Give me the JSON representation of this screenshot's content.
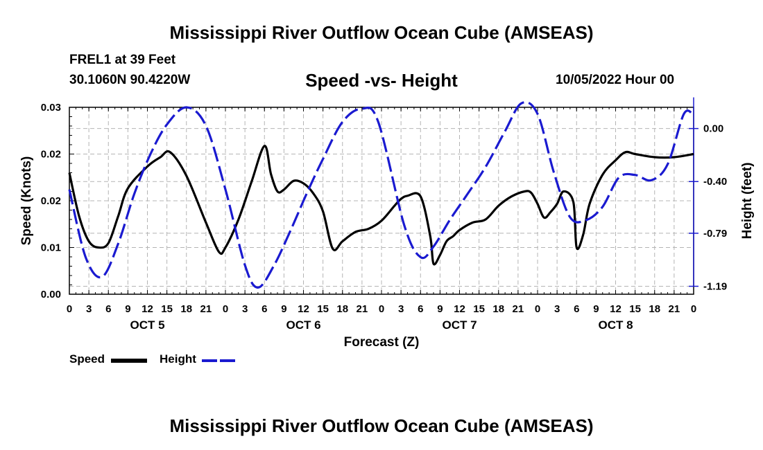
{
  "page": {
    "title": "Mississippi River Outflow Ocean Cube (AMSEAS)",
    "station": "FREL1 at 39 Feet",
    "coords": "30.1060N  90.4220W",
    "subtitle": "Speed -vs- Height",
    "date": "10/05/2022 Hour 00",
    "bottom_title": "Mississippi River Outflow Ocean Cube (AMSEAS)"
  },
  "legend": {
    "speed_label": "Speed",
    "height_label": "Height"
  },
  "colors": {
    "speed": "#000000",
    "height": "#1a1ad0",
    "grid": "#b4b4b4"
  },
  "chart_data": {
    "type": "line",
    "title": "Speed -vs- Height",
    "xlabel": "Forecast (Z)",
    "ylabel": "Speed (Knots)",
    "y2label": "Height (feet)",
    "x_range": [
      0,
      96
    ],
    "ylim": [
      0,
      0.03
    ],
    "y2lim": [
      -1.25,
      0.16
    ],
    "y_ticks": [
      "0.00",
      "0.01",
      "0.02",
      "0.02",
      "0.03"
    ],
    "y_tick_values": [
      0,
      0.0075,
      0.015,
      0.0225,
      0.03
    ],
    "y2_ticks": [
      "0.00",
      "-0.40",
      "-0.79",
      "-1.19"
    ],
    "y2_tick_values": [
      0,
      -0.4,
      -0.79,
      -1.19
    ],
    "x_ticks": [
      "0",
      "3",
      "6",
      "9",
      "12",
      "15",
      "18",
      "21",
      "0",
      "3",
      "6",
      "9",
      "12",
      "15",
      "18",
      "21",
      "0",
      "3",
      "6",
      "9",
      "12",
      "15",
      "18",
      "21",
      "0",
      "3",
      "6",
      "9",
      "12",
      "15",
      "18",
      "21",
      "0"
    ],
    "x_tick_step_hours": 3,
    "day_labels": [
      {
        "label": "OCT 5",
        "hour": 12
      },
      {
        "label": "OCT 6",
        "hour": 36
      },
      {
        "label": "OCT 7",
        "hour": 60
      },
      {
        "label": "OCT 8",
        "hour": 84
      }
    ],
    "series": [
      {
        "name": "Speed",
        "axis": "left",
        "style": "solid",
        "x": [
          0,
          1.5,
          3,
          4.5,
          6,
          7.5,
          9,
          12,
          14,
          15.5,
          18,
          21,
          23,
          24,
          26,
          28,
          30,
          31,
          32,
          33,
          34.5,
          36,
          37.5,
          39,
          40.5,
          42,
          44,
          46,
          48,
          50,
          51,
          52,
          54,
          55.5,
          56,
          57,
          58,
          59,
          60,
          62,
          64,
          66,
          68,
          70,
          71,
          72,
          73,
          74,
          75,
          76,
          77.5,
          78,
          79,
          80,
          82,
          84,
          85.5,
          87,
          90,
          93,
          96
        ],
        "values": [
          0.0195,
          0.0125,
          0.0085,
          0.0075,
          0.0082,
          0.0125,
          0.017,
          0.0205,
          0.022,
          0.0228,
          0.019,
          0.0115,
          0.0068,
          0.0075,
          0.012,
          0.018,
          0.0238,
          0.0193,
          0.0165,
          0.0168,
          0.0182,
          0.0178,
          0.0162,
          0.0133,
          0.0073,
          0.0085,
          0.01,
          0.0105,
          0.0118,
          0.0142,
          0.0153,
          0.0158,
          0.0157,
          0.0093,
          0.0049,
          0.0063,
          0.0085,
          0.0093,
          0.0103,
          0.0115,
          0.012,
          0.0142,
          0.0157,
          0.0165,
          0.0163,
          0.0145,
          0.0123,
          0.0132,
          0.0145,
          0.0165,
          0.0148,
          0.0075,
          0.0095,
          0.0145,
          0.0192,
          0.0215,
          0.0228,
          0.0225,
          0.022,
          0.022,
          0.0225
        ]
      },
      {
        "name": "Height",
        "axis": "right",
        "style": "dashed",
        "x": [
          0,
          2.5,
          5,
          7.5,
          10,
          12.5,
          15,
          18,
          21,
          24,
          27,
          29,
          31.5,
          34,
          36.5,
          39,
          42,
          45,
          47.5,
          51.5,
          54,
          56,
          58.5,
          61,
          64,
          67,
          69.5,
          72,
          74.5,
          77,
          79.5,
          82,
          84.5,
          87,
          89.5,
          92,
          94.5,
          96
        ],
        "values": [
          -0.46,
          -0.97,
          -1.12,
          -0.87,
          -0.49,
          -0.19,
          0.03,
          0.16,
          0.02,
          -0.46,
          -1.03,
          -1.2,
          -1.03,
          -0.77,
          -0.49,
          -0.23,
          0.05,
          0.15,
          0.05,
          -0.73,
          -0.97,
          -0.89,
          -0.69,
          -0.51,
          -0.29,
          -0.02,
          0.19,
          0.11,
          -0.33,
          -0.67,
          -0.69,
          -0.59,
          -0.37,
          -0.35,
          -0.39,
          -0.27,
          0.11,
          0.1
        ]
      }
    ]
  }
}
